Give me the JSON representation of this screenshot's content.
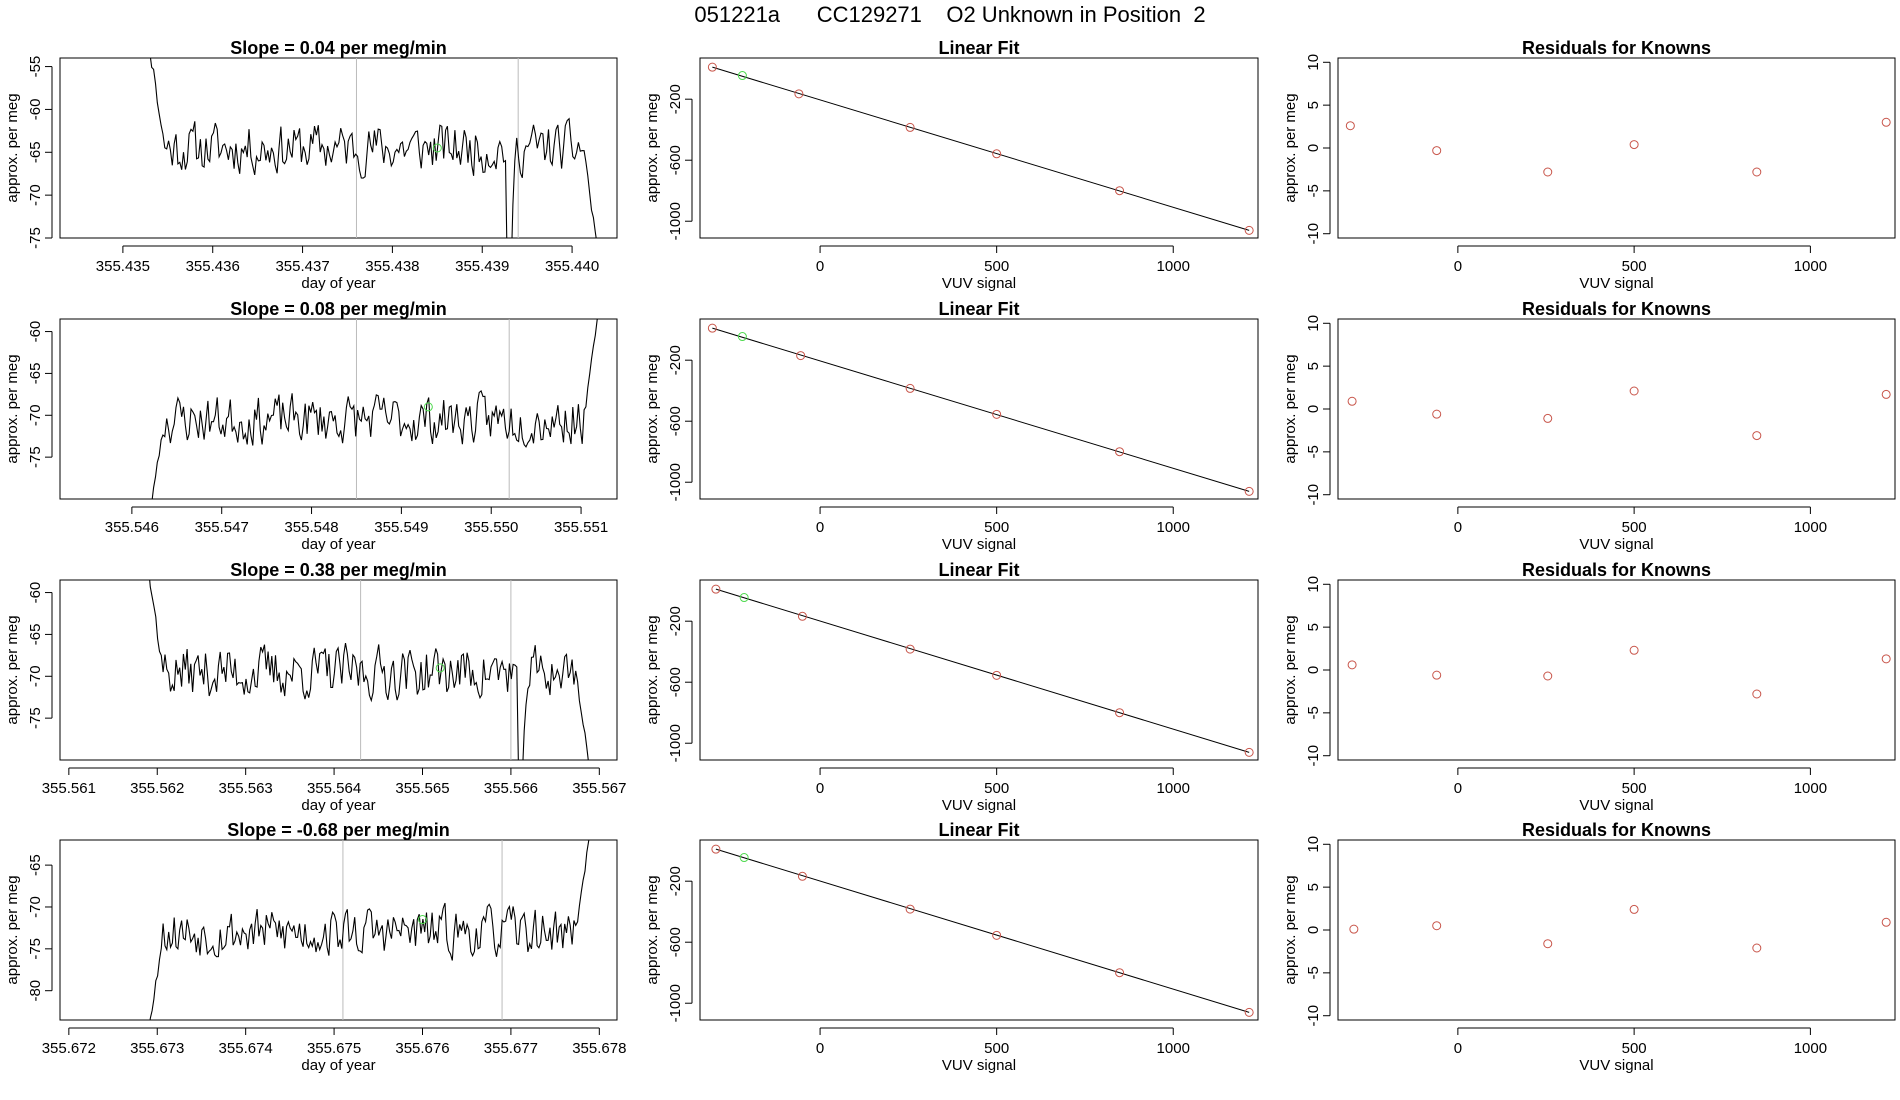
{
  "figure": {
    "title": "051221a      CC129271    O2 Unknown in Position  2"
  },
  "colors": {
    "line": "#000000",
    "marker_known": "#c8554a",
    "marker_highlight": "#4cd94c",
    "vline": "#bbbbbb",
    "frame": "#000000"
  },
  "chart_data": [
    {
      "type": "line",
      "row": 1,
      "col": 1,
      "title": "Slope =  0.04  per meg/min",
      "xlabel": "day of year",
      "ylabel": "approx. per meg",
      "xlim": [
        355.4343,
        355.4405
      ],
      "ylim": [
        -75,
        -54
      ],
      "xticks": [
        355.435,
        355.436,
        355.437,
        355.438,
        355.439,
        355.44
      ],
      "xtick_labels": [
        "355.435",
        "355.436",
        "355.437",
        "355.438",
        "355.439",
        "355.440"
      ],
      "yticks": [
        -55,
        -60,
        -65,
        -70,
        -75
      ],
      "vlines": [
        355.4376,
        355.4394
      ],
      "x_start": 355.4353,
      "x_end": 355.4403,
      "seed": 11,
      "base": -64.5,
      "amp": 2.6,
      "start_y": -53,
      "end_y": -78,
      "dips": [
        {
          "x": 355.4393,
          "y": -79
        }
      ],
      "highlight": {
        "x": 355.4385,
        "y": -64.5
      }
    },
    {
      "type": "scatter",
      "row": 1,
      "col": 2,
      "title": "Linear Fit",
      "xlabel": "VUV signal",
      "ylabel": "approx. per meg",
      "xlim": [
        -340,
        1240
      ],
      "ylim": [
        -1110,
        70
      ],
      "xticks": [
        0,
        500,
        1000
      ],
      "yticks": [
        -200,
        -600,
        -1000
      ],
      "fit": [
        [
          -305,
          10
        ],
        [
          1215,
          -1060
        ]
      ],
      "points": [
        [
          -305,
          10
        ],
        [
          -60,
          -165
        ],
        [
          255,
          -385
        ],
        [
          500,
          -558
        ],
        [
          848,
          -800
        ],
        [
          1215,
          -1060
        ]
      ],
      "highlight": [
        -220,
        -45
      ]
    },
    {
      "type": "scatter",
      "row": 1,
      "col": 3,
      "title": "Residuals for Knowns",
      "xlabel": "VUV signal",
      "ylabel": "approx. per meg",
      "xlim": [
        -340,
        1240
      ],
      "ylim": [
        -10.5,
        10.5
      ],
      "xticks": [
        0,
        500,
        1000
      ],
      "yticks": [
        10,
        5,
        0,
        -5,
        -10
      ],
      "points": [
        [
          -305,
          2.6
        ],
        [
          -60,
          -0.3
        ],
        [
          255,
          -2.8
        ],
        [
          500,
          0.4
        ],
        [
          848,
          -2.8
        ],
        [
          1215,
          3.0
        ]
      ]
    },
    {
      "type": "line",
      "row": 2,
      "col": 1,
      "title": "Slope =  0.08  per meg/min",
      "xlabel": "day of year",
      "ylabel": "approx. per meg",
      "xlim": [
        355.5452,
        355.5514
      ],
      "ylim": [
        -80,
        -58.5
      ],
      "xticks": [
        355.546,
        355.547,
        355.548,
        355.549,
        355.55,
        355.551
      ],
      "xtick_labels": [
        "355.546",
        "355.547",
        "355.548",
        "355.549",
        "355.550",
        "355.551"
      ],
      "yticks": [
        -60,
        -65,
        -70,
        -75
      ],
      "vlines": [
        355.5485,
        355.5502
      ],
      "x_start": 355.5462,
      "x_end": 355.5512,
      "seed": 23,
      "base": -70.5,
      "amp": 2.6,
      "start_y": -82,
      "end_y": -57,
      "dips": [],
      "highlight": {
        "x": 355.5493,
        "y": -69
      }
    },
    {
      "type": "scatter",
      "row": 2,
      "col": 2,
      "title": "Linear Fit",
      "xlabel": "VUV signal",
      "ylabel": "approx. per meg",
      "xlim": [
        -340,
        1240
      ],
      "ylim": [
        -1110,
        70
      ],
      "xticks": [
        0,
        500,
        1000
      ],
      "yticks": [
        -200,
        -600,
        -1000
      ],
      "fit": [
        [
          -305,
          10
        ],
        [
          1215,
          -1060
        ]
      ],
      "points": [
        [
          -305,
          10
        ],
        [
          -55,
          -170
        ],
        [
          255,
          -385
        ],
        [
          500,
          -555
        ],
        [
          848,
          -800
        ],
        [
          1215,
          -1060
        ]
      ],
      "highlight": [
        -220,
        -45
      ]
    },
    {
      "type": "scatter",
      "row": 2,
      "col": 3,
      "title": "Residuals for Knowns",
      "xlabel": "VUV signal",
      "ylabel": "approx. per meg",
      "xlim": [
        -340,
        1240
      ],
      "ylim": [
        -10.5,
        10.5
      ],
      "xticks": [
        0,
        500,
        1000
      ],
      "yticks": [
        10,
        5,
        0,
        -5,
        -10
      ],
      "points": [
        [
          -300,
          0.9
        ],
        [
          -60,
          -0.6
        ],
        [
          255,
          -1.1
        ],
        [
          500,
          2.1
        ],
        [
          848,
          -3.1
        ],
        [
          1215,
          1.7
        ]
      ]
    },
    {
      "type": "line",
      "row": 3,
      "col": 1,
      "title": "Slope =  0.38  per meg/min",
      "xlabel": "day of year",
      "ylabel": "approx. per meg",
      "xlim": [
        355.5609,
        355.5672
      ],
      "ylim": [
        -80,
        -58.5
      ],
      "xticks": [
        355.561,
        355.562,
        355.563,
        355.564,
        355.565,
        355.566,
        355.567
      ],
      "xtick_labels": [
        "355.561",
        "355.562",
        "355.563",
        "355.564",
        "355.565",
        "355.566",
        "355.567"
      ],
      "yticks": [
        -60,
        -65,
        -70,
        -75
      ],
      "vlines": [
        355.5643,
        355.566
      ],
      "x_start": 355.5619,
      "x_end": 355.5669,
      "seed": 37,
      "base": -69.5,
      "amp": 2.8,
      "start_y": -57,
      "end_y": -82,
      "dips": [
        {
          "x": 355.5661,
          "y": -82
        }
      ],
      "highlight": {
        "x": 355.5652,
        "y": -69
      }
    },
    {
      "type": "scatter",
      "row": 3,
      "col": 2,
      "title": "Linear Fit",
      "xlabel": "VUV signal",
      "ylabel": "approx. per meg",
      "xlim": [
        -340,
        1240
      ],
      "ylim": [
        -1110,
        70
      ],
      "xticks": [
        0,
        500,
        1000
      ],
      "yticks": [
        -200,
        -600,
        -1000
      ],
      "fit": [
        [
          -295,
          10
        ],
        [
          1215,
          -1060
        ]
      ],
      "points": [
        [
          -295,
          10
        ],
        [
          -50,
          -168
        ],
        [
          255,
          -383
        ],
        [
          500,
          -555
        ],
        [
          848,
          -800
        ],
        [
          1215,
          -1060
        ]
      ],
      "highlight": [
        -215,
        -45
      ]
    },
    {
      "type": "scatter",
      "row": 3,
      "col": 3,
      "title": "Residuals for Knowns",
      "xlabel": "VUV signal",
      "ylabel": "approx. per meg",
      "xlim": [
        -340,
        1240
      ],
      "ylim": [
        -10.5,
        10.5
      ],
      "xticks": [
        0,
        500,
        1000
      ],
      "yticks": [
        10,
        5,
        0,
        -5,
        -10
      ],
      "points": [
        [
          -300,
          0.6
        ],
        [
          -60,
          -0.6
        ],
        [
          255,
          -0.7
        ],
        [
          500,
          2.3
        ],
        [
          848,
          -2.8
        ],
        [
          1215,
          1.3
        ]
      ]
    },
    {
      "type": "line",
      "row": 4,
      "col": 1,
      "title": "Slope =  -0.68  per meg/min",
      "xlabel": "day of year",
      "ylabel": "approx. per meg",
      "xlim": [
        355.6719,
        355.6782
      ],
      "ylim": [
        -83.5,
        -62
      ],
      "xticks": [
        355.672,
        355.673,
        355.674,
        355.675,
        355.676,
        355.677,
        355.678
      ],
      "xtick_labels": [
        "355.672",
        "355.673",
        "355.674",
        "355.675",
        "355.676",
        "355.677",
        "355.678"
      ],
      "yticks": [
        -65,
        -70,
        -75,
        -80
      ],
      "vlines": [
        355.6751,
        355.6769
      ],
      "x_start": 355.6729,
      "x_end": 355.6779,
      "seed": 53,
      "base": -73,
      "amp": 2.6,
      "start_y": -85,
      "end_y": -61,
      "dips": [],
      "highlight": {
        "x": 355.676,
        "y": -71.5
      }
    },
    {
      "type": "scatter",
      "row": 4,
      "col": 2,
      "title": "Linear Fit",
      "xlabel": "VUV signal",
      "ylabel": "approx. per meg",
      "xlim": [
        -340,
        1240
      ],
      "ylim": [
        -1110,
        70
      ],
      "xticks": [
        0,
        500,
        1000
      ],
      "yticks": [
        -200,
        -600,
        -1000
      ],
      "fit": [
        [
          -295,
          10
        ],
        [
          1215,
          -1060
        ]
      ],
      "points": [
        [
          -295,
          10
        ],
        [
          -50,
          -168
        ],
        [
          255,
          -383
        ],
        [
          500,
          -555
        ],
        [
          848,
          -800
        ],
        [
          1215,
          -1060
        ]
      ],
      "highlight": [
        -215,
        -45
      ]
    },
    {
      "type": "scatter",
      "row": 4,
      "col": 3,
      "title": "Residuals for Knowns",
      "xlabel": "VUV signal",
      "ylabel": "approx. per meg",
      "xlim": [
        -340,
        1240
      ],
      "ylim": [
        -10.5,
        10.5
      ],
      "xticks": [
        0,
        500,
        1000
      ],
      "yticks": [
        10,
        5,
        0,
        -5,
        -10
      ],
      "points": [
        [
          -295,
          0.1
        ],
        [
          -60,
          0.5
        ],
        [
          255,
          -1.6
        ],
        [
          500,
          2.4
        ],
        [
          848,
          -2.1
        ],
        [
          1215,
          0.9
        ]
      ]
    }
  ]
}
